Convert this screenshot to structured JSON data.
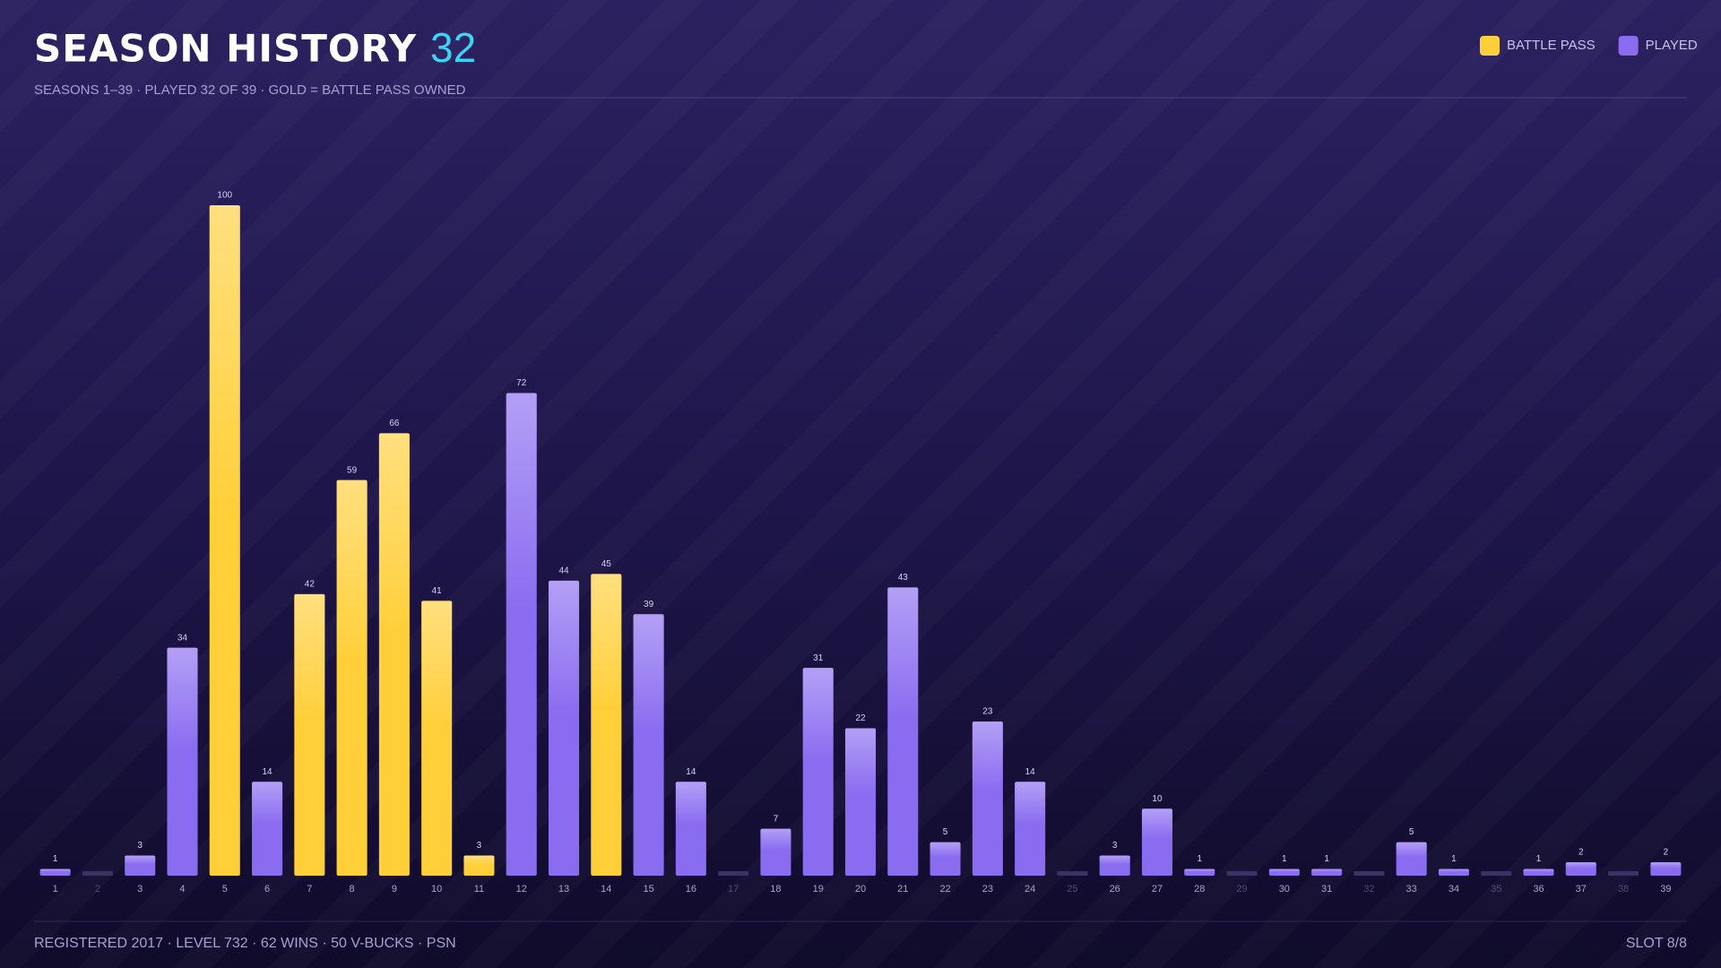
{
  "chart_data": {
    "type": "bar",
    "title": "SEASON HISTORY",
    "title_count": 32,
    "subtitle": "SEASONS 1–39 · PLAYED 32 OF 39 · GOLD = BATTLE PASS OWNED",
    "legend": [
      {
        "name": "BATTLE PASS",
        "color": "#ffcf3a"
      },
      {
        "name": "PLAYED",
        "color": "#8a6cf0"
      }
    ],
    "categories": [
      "1",
      "2",
      "3",
      "4",
      "5",
      "6",
      "7",
      "8",
      "9",
      "10",
      "11",
      "12",
      "13",
      "14",
      "15",
      "16",
      "17",
      "18",
      "19",
      "20",
      "21",
      "22",
      "23",
      "24",
      "25",
      "26",
      "27",
      "28",
      "29",
      "30",
      "31",
      "32",
      "33",
      "34",
      "35",
      "36",
      "37",
      "38",
      "39"
    ],
    "values": [
      1,
      null,
      3,
      34,
      100,
      14,
      42,
      59,
      66,
      41,
      3,
      72,
      44,
      45,
      39,
      14,
      null,
      7,
      31,
      22,
      43,
      5,
      23,
      14,
      null,
      3,
      10,
      1,
      null,
      1,
      1,
      null,
      5,
      1,
      null,
      1,
      2,
      null,
      2
    ],
    "battle_pass": [
      false,
      false,
      false,
      false,
      true,
      false,
      true,
      true,
      true,
      true,
      true,
      false,
      false,
      true,
      false,
      false,
      false,
      false,
      false,
      false,
      false,
      false,
      false,
      false,
      false,
      false,
      false,
      false,
      false,
      false,
      false,
      false,
      false,
      false,
      false,
      false,
      false,
      false,
      false
    ]
  },
  "footer": {
    "left": "REGISTERED 2017 · LEVEL 732 · 62 WINS · 50 V-BUCKS · PSN",
    "right": "SLOT 8/8"
  }
}
